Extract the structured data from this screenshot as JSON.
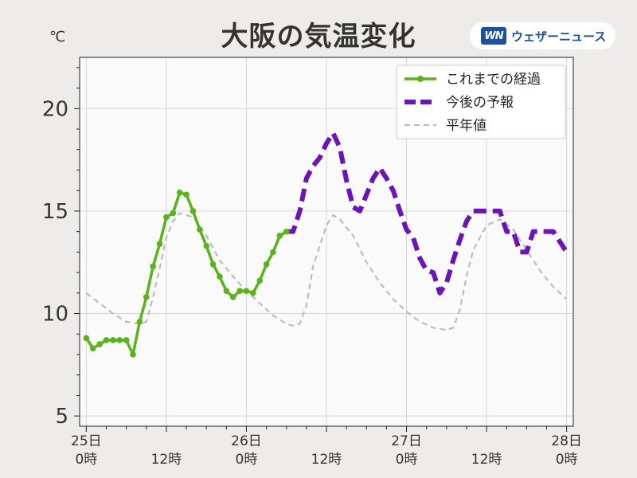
{
  "chart_data": {
    "type": "line",
    "title": "大阪の気温変化",
    "unit_label": "℃",
    "ylim": [
      4.5,
      22.5
    ],
    "xlim": [
      -1,
      73
    ],
    "yticks": [
      5,
      10,
      15,
      20
    ],
    "ytick_labels": [
      "5",
      "10",
      "15",
      "20"
    ],
    "xticks": [
      0,
      12,
      24,
      36,
      48,
      60,
      72
    ],
    "xtick_labels": [
      [
        "25日",
        "0時"
      ],
      [
        "",
        "12時"
      ],
      [
        "26日",
        "0時"
      ],
      [
        "",
        "12時"
      ],
      [
        "27日",
        "0時"
      ],
      [
        "",
        "12時"
      ],
      [
        "28日",
        "0時"
      ]
    ],
    "grid": true,
    "legend_position": "top-right",
    "series": [
      {
        "name": "これまでの経過",
        "color": "#58b517",
        "style": "solid-markers",
        "x": [
          0,
          1,
          2,
          3,
          4,
          5,
          6,
          7,
          8,
          9,
          10,
          11,
          12,
          13,
          14,
          15,
          16,
          17,
          18,
          19,
          20,
          21,
          22,
          23,
          24,
          25,
          26,
          27,
          28,
          29,
          30
        ],
        "y": [
          8.8,
          8.3,
          8.5,
          8.7,
          8.7,
          8.7,
          8.7,
          8.0,
          9.6,
          10.8,
          12.3,
          13.4,
          14.7,
          14.9,
          15.9,
          15.8,
          15.0,
          14.1,
          13.3,
          12.4,
          11.8,
          11.1,
          10.8,
          11.1,
          11.1,
          11.0,
          11.6,
          12.4,
          13.0,
          13.8,
          14.0
        ]
      },
      {
        "name": "今後の予報",
        "color": "#6c13c0",
        "style": "thick-dashed",
        "x": [
          30,
          31,
          32,
          33,
          34,
          35,
          36,
          37,
          38,
          39,
          40,
          41,
          42,
          43,
          44,
          45,
          46,
          47,
          48,
          49,
          50,
          51,
          52,
          53,
          54,
          55,
          56,
          57,
          58,
          59,
          60,
          61,
          62,
          63,
          64,
          65,
          66,
          67,
          68,
          69,
          70,
          71,
          72
        ],
        "y": [
          14.0,
          14.0,
          15.0,
          16.6,
          17.2,
          17.6,
          18.3,
          18.8,
          18.1,
          16.5,
          15.2,
          15.0,
          15.8,
          16.6,
          17.1,
          16.6,
          16.0,
          15.0,
          14.1,
          13.7,
          12.7,
          12.1,
          12.0,
          11.0,
          11.5,
          12.6,
          13.6,
          14.5,
          15.0,
          15.0,
          15.0,
          15.0,
          15.0,
          14.0,
          14.0,
          13.0,
          13.0,
          14.0,
          14.0,
          14.0,
          14.0,
          13.5,
          13.0
        ]
      },
      {
        "name": "平年値",
        "color": "#bdbdbd",
        "style": "thin-dashed",
        "x": [
          0,
          2,
          4,
          6,
          8,
          9,
          10,
          11,
          12,
          13,
          14,
          16,
          18,
          20,
          22,
          24,
          26,
          28,
          30,
          31,
          32,
          33,
          34,
          36,
          37,
          38,
          40,
          42,
          44,
          46,
          48,
          50,
          52,
          54,
          55,
          56,
          57,
          58,
          60,
          62,
          64,
          66,
          68,
          70,
          72
        ],
        "y": [
          11.0,
          10.5,
          10.0,
          9.6,
          9.5,
          9.6,
          10.8,
          12.2,
          13.7,
          14.5,
          14.9,
          14.7,
          13.8,
          12.6,
          11.8,
          11.1,
          10.5,
          9.9,
          9.5,
          9.4,
          9.5,
          10.4,
          12.3,
          14.3,
          14.8,
          14.6,
          13.8,
          12.5,
          11.5,
          10.7,
          10.1,
          9.6,
          9.3,
          9.2,
          9.3,
          10.2,
          11.8,
          13.1,
          14.3,
          14.6,
          14.1,
          13.1,
          12.1,
          11.3,
          10.7
        ]
      }
    ]
  },
  "brand": {
    "mark": "WN",
    "name": "ウェザーニュース",
    "color": "#1d4fa3"
  }
}
